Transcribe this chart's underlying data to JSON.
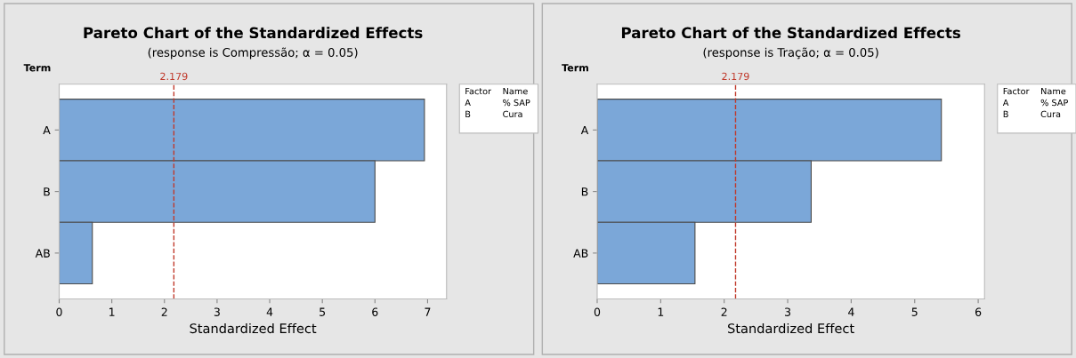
{
  "chart_data": [
    {
      "type": "bar",
      "orientation": "horizontal",
      "title": "Pareto Chart of the Standardized Effects",
      "subtitle": "(response is Compressão; α = 0.05)",
      "xlabel": "Standardized Effect",
      "ylabel": "Term",
      "categories": [
        "A",
        "B",
        "AB"
      ],
      "values": [
        6.94,
        6.0,
        0.63
      ],
      "color": "#7ba7d8",
      "xlim": [
        0,
        7.36
      ],
      "xticks": [
        0,
        1,
        2,
        3,
        4,
        5,
        6,
        7
      ],
      "grid": false,
      "legend": false,
      "ref_lines": [
        {
          "axis": "x",
          "value": 2.179,
          "label": "2.179",
          "color": "#c0392b",
          "line_style": "dashed"
        }
      ],
      "annotations": [
        "Factor",
        "Name",
        "A",
        "% SAP",
        "B",
        "Cura"
      ]
    },
    {
      "type": "bar",
      "orientation": "horizontal",
      "title": "Pareto Chart of the Standardized Effects",
      "subtitle": "(response is Tração; α = 0.05)",
      "xlabel": "Standardized Effect",
      "ylabel": "Term",
      "categories": [
        "A",
        "B",
        "AB"
      ],
      "values": [
        5.42,
        3.37,
        1.54
      ],
      "color": "#7ba7d8",
      "xlim": [
        0,
        6.1
      ],
      "xticks": [
        0,
        1,
        2,
        3,
        4,
        5,
        6
      ],
      "grid": false,
      "legend": false,
      "ref_lines": [
        {
          "axis": "x",
          "value": 2.179,
          "label": "2.179",
          "color": "#c0392b",
          "line_style": "dashed"
        }
      ],
      "annotations": [
        "Factor",
        "Name",
        "A",
        "% SAP",
        "B",
        "Cura"
      ]
    }
  ]
}
